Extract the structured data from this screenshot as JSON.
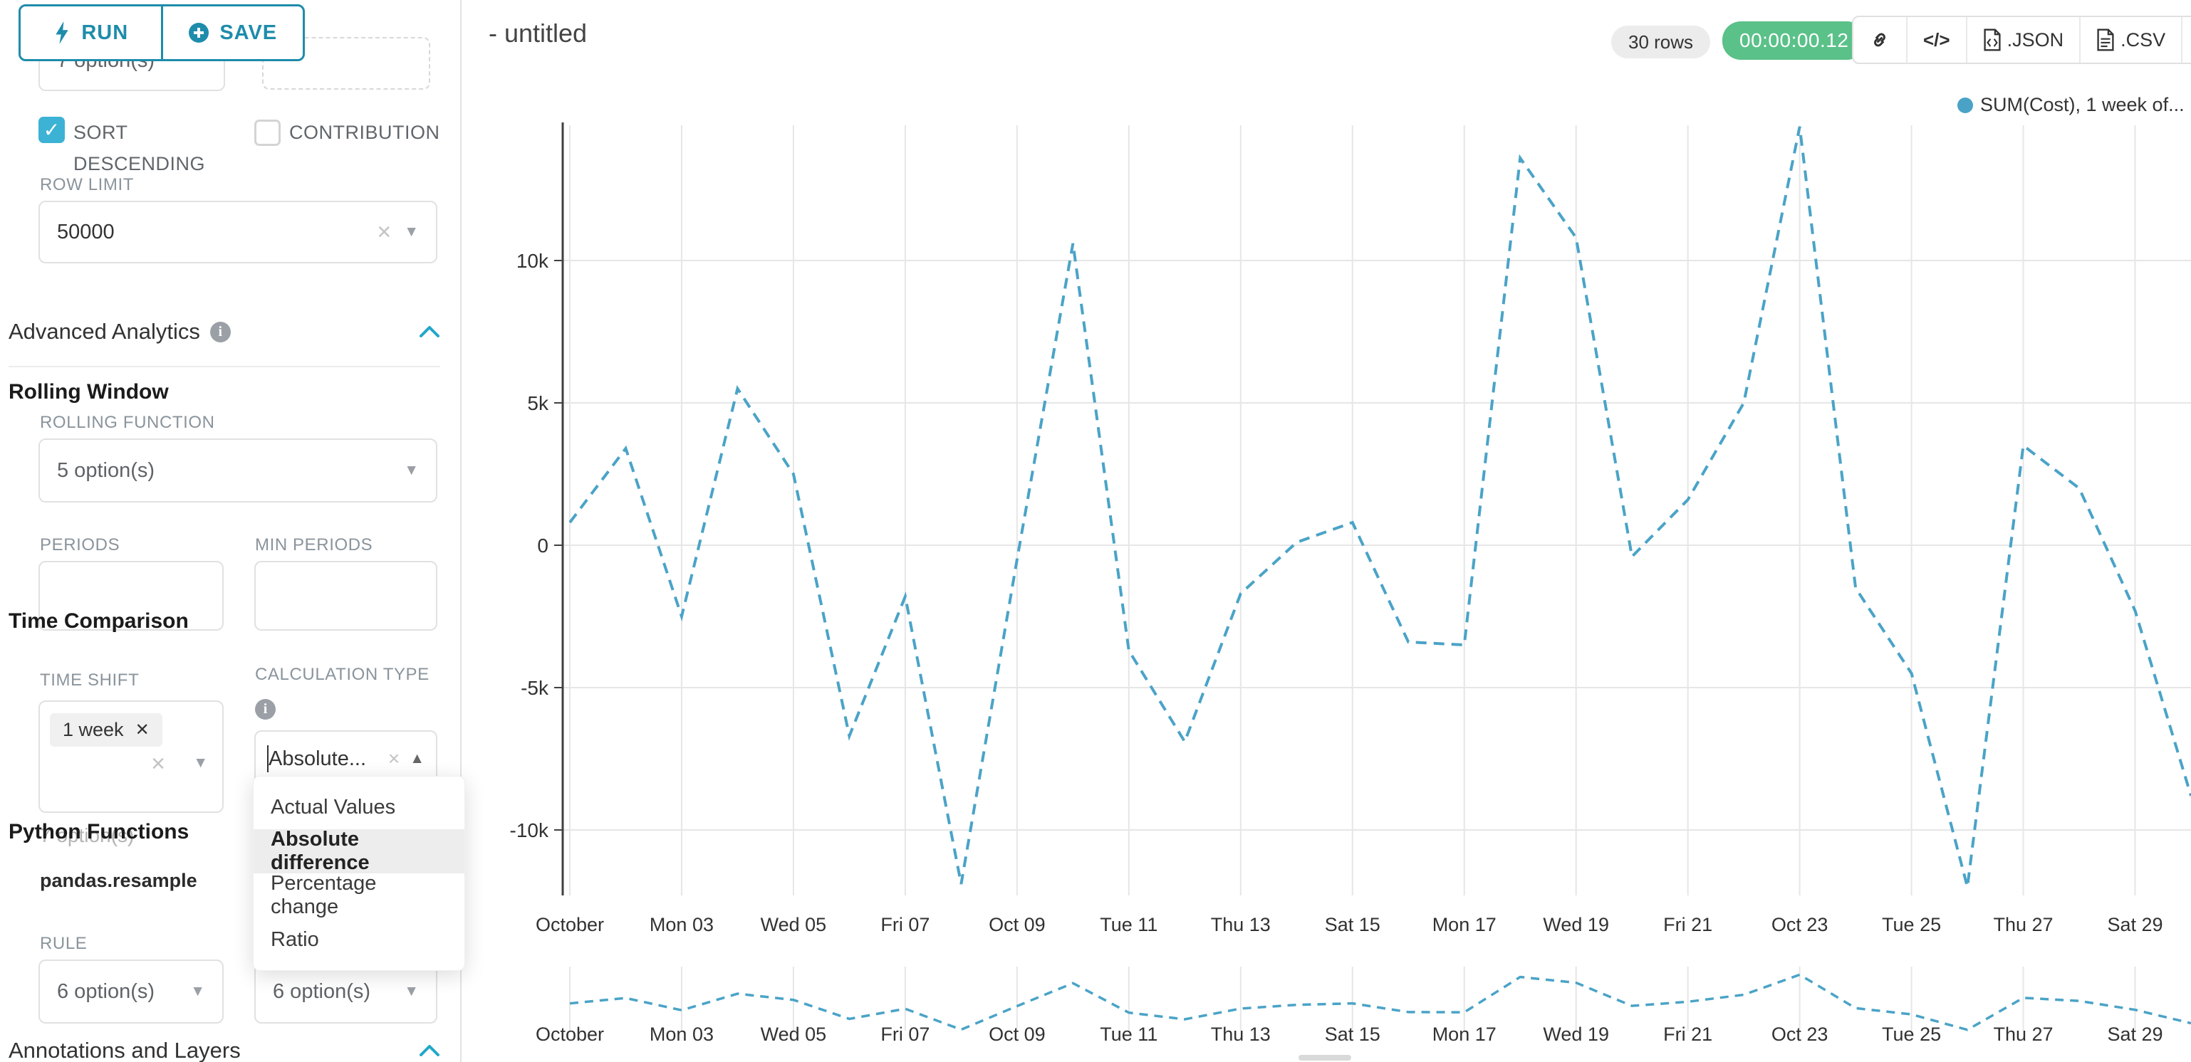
{
  "toolbar": {
    "run_label": "RUN",
    "save_label": "SAVE"
  },
  "icons": {
    "caret_down": "▼",
    "caret_up": "▲",
    "clear": "×",
    "tag_close": "✕",
    "check": "✓",
    "code": "</>",
    "info": "i"
  },
  "sidebar": {
    "top_select_value": "7 option(s)",
    "sort_descending_label": "SORT DESCENDING",
    "contribution_label": "CONTRIBUTION",
    "row_limit_label": "ROW LIMIT",
    "row_limit_value": "50000",
    "advanced_analytics_title": "Advanced Analytics",
    "rolling": {
      "title": "Rolling Window",
      "function_label": "ROLLING FUNCTION",
      "function_value": "5 option(s)",
      "periods_label": "PERIODS",
      "min_periods_label": "MIN PERIODS",
      "periods_value": "",
      "min_periods_value": ""
    },
    "time": {
      "title": "Time Comparison",
      "shift_label": "TIME SHIFT",
      "shift_tag": "1 week",
      "shift_hint": "7 option(s)",
      "calc_label": "CALCULATION TYPE",
      "calc_value": "Absolute..."
    },
    "dropdown": {
      "items": [
        "Actual Values",
        "Absolute difference",
        "Percentage change",
        "Ratio"
      ],
      "selected_index": 1
    },
    "python": {
      "title": "Python Functions",
      "function_name": "pandas.resample",
      "rule_label": "RULE",
      "value1": "6 option(s)",
      "value2": "6 option(s)"
    },
    "annotations_title": "Annotations and Layers"
  },
  "header": {
    "title": "- untitled",
    "rows_badge": "30 rows",
    "timer_badge": "00:00:00.12",
    "json_label": ".JSON",
    "csv_label": ".CSV"
  },
  "legend": {
    "label": "SUM(Cost), 1 week of..."
  },
  "colors": {
    "accent": "#1e8cab",
    "chevron": "#20a7c9",
    "checkbox": "#3cb2d4",
    "timer_green": "#5ac189",
    "line": "#4aa3c7",
    "gridline": "#e6e6e6",
    "axis": "#404040"
  },
  "chart_data": {
    "type": "line",
    "title": "- untitled",
    "legend_position": "top-right",
    "grid": true,
    "line_style": "dashed",
    "line_color": "#4aa3c7",
    "x_tick_labels": [
      "October",
      "Mon 03",
      "Wed 05",
      "Fri 07",
      "Oct 09",
      "Tue 11",
      "Thu 13",
      "Sat 15",
      "Mon 17",
      "Wed 19",
      "Fri 21",
      "Oct 23",
      "Tue 25",
      "Thu 27",
      "Sat 29"
    ],
    "y_tick_labels": [
      "10k",
      "5k",
      "0",
      "-5k",
      "-10k"
    ],
    "y_ticks": [
      10000,
      5000,
      0,
      -5000,
      -10000
    ],
    "ylim": [
      -13500,
      14700
    ],
    "mini_chart": true,
    "series": [
      {
        "name": "SUM(Cost), 1 week of...",
        "dates": [
          "Oct 01",
          "Oct 02",
          "Oct 03",
          "Oct 04",
          "Oct 05",
          "Oct 06",
          "Oct 07",
          "Oct 08",
          "Oct 09",
          "Oct 10",
          "Oct 11",
          "Oct 12",
          "Oct 13",
          "Oct 14",
          "Oct 15",
          "Oct 16",
          "Oct 17",
          "Oct 18",
          "Oct 19",
          "Oct 20",
          "Oct 21",
          "Oct 22",
          "Oct 23",
          "Oct 24",
          "Oct 25",
          "Oct 26",
          "Oct 27",
          "Oct 28",
          "Oct 29",
          "Oct 30"
        ],
        "values": [
          800,
          3400,
          -2500,
          5500,
          2500,
          -6700,
          -1800,
          -11900,
          -500,
          10600,
          -3700,
          -6900,
          -1700,
          100,
          800,
          -3400,
          -3500,
          13600,
          10800,
          -400,
          1600,
          5000,
          14700,
          -1500,
          -4500,
          -12000,
          3500,
          2000,
          -2300,
          -8800
        ]
      }
    ]
  }
}
